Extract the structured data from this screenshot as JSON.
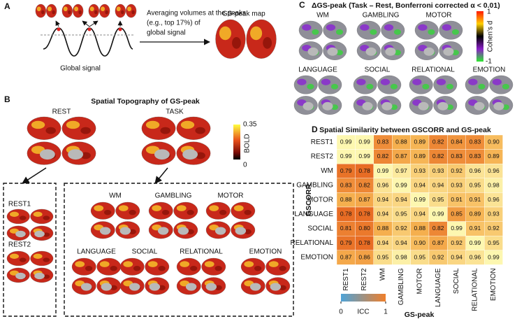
{
  "panel_a": {
    "label": "A",
    "caption": [
      "Averaging volumes at the peaks",
      "(e.g., top 17%) of",
      "global signal"
    ],
    "signal_label": "Global signal",
    "map_label": "GS-peak map"
  },
  "panel_b": {
    "label": "B",
    "title": "Spatial Topography of GS-peak",
    "groups": [
      "REST",
      "TASK"
    ],
    "colorbar": {
      "label": "BOLD",
      "ticks": [
        0.35,
        0
      ]
    },
    "rest_runs": [
      "REST1",
      "REST2"
    ],
    "tasks": [
      "WM",
      "GAMBLING",
      "MOTOR",
      "LANGUAGE",
      "SOCIAL",
      "RELATIONAL",
      "EMOTION"
    ]
  },
  "panel_c": {
    "label": "C",
    "title": "ΔGS-peak (Task – Rest, Bonferroni corrected α < 0.01)",
    "tasks": [
      "WM",
      "GAMBLING",
      "MOTOR",
      "LANGUAGE",
      "SOCIAL",
      "RELATIONAL",
      "EMOTION"
    ],
    "colorbar": {
      "label": "Cohen's d",
      "ticks": [
        1,
        -1
      ]
    }
  },
  "chart_data": {
    "type": "heatmap",
    "label": "D",
    "title": "Spatial Similarity between GSCORR and GS-peak",
    "rows": [
      "REST1",
      "REST2",
      "WM",
      "GAMBLING",
      "MOTOR",
      "LANGUAGE",
      "SOCIAL",
      "RELATIONAL",
      "EMOTION"
    ],
    "columns": [
      "REST1",
      "REST2",
      "WM",
      "GAMBLING",
      "MOTOR",
      "LANGUAGE",
      "SOCIAL",
      "RELATIONAL",
      "EMOTION"
    ],
    "values": [
      [
        0.99,
        0.99,
        0.83,
        0.88,
        0.89,
        0.82,
        0.84,
        0.83,
        0.9
      ],
      [
        0.99,
        0.99,
        0.82,
        0.87,
        0.89,
        0.82,
        0.83,
        0.83,
        0.89
      ],
      [
        0.79,
        0.78,
        0.99,
        0.97,
        0.93,
        0.93,
        0.92,
        0.96,
        0.96
      ],
      [
        0.83,
        0.82,
        0.96,
        0.99,
        0.94,
        0.94,
        0.93,
        0.95,
        0.98
      ],
      [
        0.88,
        0.87,
        0.94,
        0.94,
        0.99,
        0.95,
        0.91,
        0.91,
        0.96
      ],
      [
        0.78,
        0.78,
        0.94,
        0.95,
        0.94,
        0.99,
        0.85,
        0.89,
        0.93
      ],
      [
        0.81,
        0.8,
        0.88,
        0.92,
        0.88,
        0.82,
        0.99,
        0.91,
        0.92
      ],
      [
        0.79,
        0.78,
        0.94,
        0.94,
        0.9,
        0.87,
        0.92,
        0.99,
        0.95
      ],
      [
        0.87,
        0.86,
        0.95,
        0.98,
        0.95,
        0.92,
        0.94,
        0.96,
        0.99
      ]
    ],
    "value_labels": [
      [
        "0.99",
        "0.99",
        "0.83",
        "0.88",
        "0.89",
        "0.82",
        "0.84",
        "0.83",
        "0.90"
      ],
      [
        "0.99",
        "0.99",
        "0.82",
        "0.87",
        "0.89",
        "0.82",
        "0.83",
        "0.83",
        "0.89"
      ],
      [
        "0.79",
        "0.78",
        "0.99",
        "0.97",
        "0.93",
        "0.93",
        "0.92",
        "0.96",
        "0.96"
      ],
      [
        "0.83",
        "0.82",
        "0.96",
        "0.99",
        "0.94",
        "0.94",
        "0.93",
        "0.95",
        "0.98"
      ],
      [
        "0.88",
        "0.87",
        "0.94",
        "0.94",
        "0.99",
        "0.95",
        "0.91",
        "0.91",
        "0.96"
      ],
      [
        "0.78",
        "0.78",
        "0.94",
        "0.95",
        "0.94",
        "0.99",
        "0.85",
        "0.89",
        "0.93"
      ],
      [
        "0.81",
        "0.80",
        "0.88",
        "0.92",
        "0.88",
        "0.82",
        "0.99",
        "0.91",
        "0.92"
      ],
      [
        "0.79",
        "0.78",
        "0.94",
        "0.94",
        "0.90",
        "0.87",
        "0.92",
        "0.99",
        "0.95"
      ],
      [
        "0.87",
        "0.86",
        "0.95",
        "0.98",
        "0.95",
        "0.92",
        "0.94",
        "0.96",
        "0.99"
      ]
    ],
    "ylabel": "GSCORR",
    "xlabel": "GS-peak",
    "colorbar": {
      "label": "ICC",
      "ticks": [
        0,
        1
      ]
    }
  }
}
